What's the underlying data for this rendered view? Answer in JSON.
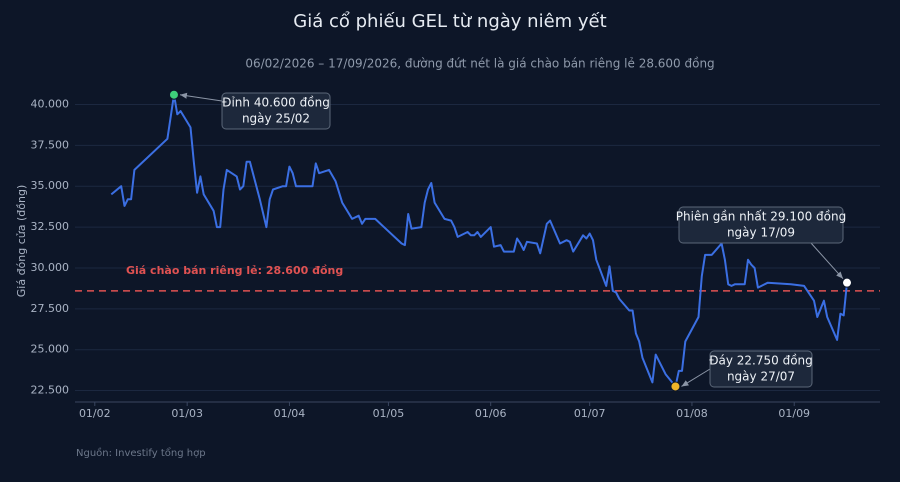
{
  "chart_data": {
    "type": "line",
    "title": "Giá cổ phiếu GEL từ ngày niêm yết",
    "subtitle": "06/02/2026 – 17/09/2026, đường đứt nét là giá chào bán riêng lẻ 28.600 đồng",
    "y_label": "Giá đóng cửa (đồng)",
    "source": "Nguồn: Investify tổng hợp",
    "color": "#3b6fe3",
    "grid": true,
    "x": [
      "06/02",
      "09/02",
      "10/02",
      "11/02",
      "12/02",
      "13/02",
      "23/02",
      "25/02",
      "26/02",
      "27/02",
      "02/03",
      "03/03",
      "04/03",
      "05/03",
      "06/03",
      "09/03",
      "10/03",
      "11/03",
      "12/03",
      "13/03",
      "16/03",
      "17/03",
      "18/03",
      "19/03",
      "20/03",
      "23/03",
      "25/03",
      "26/03",
      "27/03",
      "30/03",
      "31/03",
      "01/04",
      "02/04",
      "03/04",
      "06/04",
      "07/04",
      "08/04",
      "09/04",
      "10/04",
      "13/04",
      "15/04",
      "17/04",
      "20/04",
      "22/04",
      "23/04",
      "24/04",
      "27/04",
      "05/05",
      "06/05",
      "07/05",
      "08/05",
      "11/05",
      "12/05",
      "13/05",
      "14/05",
      "15/05",
      "18/05",
      "20/05",
      "21/05",
      "22/05",
      "25/05",
      "26/05",
      "27/05",
      "28/05",
      "29/05",
      "01/06",
      "02/06",
      "04/06",
      "05/06",
      "08/06",
      "09/06",
      "10/06",
      "11/06",
      "12/06",
      "15/06",
      "16/06",
      "18/06",
      "19/06",
      "22/06",
      "24/06",
      "25/06",
      "26/06",
      "29/06",
      "30/06",
      "01/07",
      "02/07",
      "03/07",
      "06/07",
      "07/07",
      "08/07",
      "09/07",
      "10/07",
      "13/07",
      "14/07",
      "15/07",
      "16/07",
      "17/07",
      "20/07",
      "21/07",
      "24/07",
      "27/07",
      "28/07",
      "29/07",
      "30/07",
      "03/08",
      "04/08",
      "05/08",
      "06/08",
      "07/08",
      "10/08",
      "11/08",
      "12/08",
      "13/08",
      "14/08",
      "17/08",
      "18/08",
      "19/08",
      "20/08",
      "21/08",
      "24/08",
      "31/08",
      "04/09",
      "07/09",
      "08/09",
      "10/09",
      "11/09",
      "14/09",
      "15/09",
      "16/09",
      "17/09"
    ],
    "values": [
      34500,
      35000,
      33800,
      34200,
      34200,
      36000,
      37900,
      40600,
      39400,
      39600,
      38600,
      36500,
      34600,
      35600,
      34500,
      33500,
      32500,
      32500,
      34800,
      36000,
      35600,
      34800,
      35000,
      36500,
      36500,
      34200,
      32500,
      34200,
      34800,
      35000,
      35000,
      36200,
      35800,
      35000,
      35000,
      35000,
      35000,
      36400,
      35800,
      36000,
      35300,
      34000,
      33000,
      33200,
      32700,
      33000,
      33000,
      31500,
      31400,
      33300,
      32400,
      32500,
      34000,
      34800,
      35200,
      34000,
      33000,
      32900,
      32500,
      31900,
      32200,
      32000,
      32000,
      32200,
      31900,
      32500,
      31300,
      31400,
      31000,
      31000,
      31800,
      31500,
      31100,
      31600,
      31500,
      30900,
      32700,
      32900,
      31500,
      31700,
      31600,
      31000,
      32000,
      31800,
      32100,
      31700,
      30500,
      28900,
      30100,
      28600,
      28500,
      28100,
      27400,
      27400,
      26000,
      25500,
      24500,
      23000,
      24700,
      23500,
      22750,
      23700,
      23700,
      25500,
      27000,
      29500,
      30800,
      30800,
      30800,
      31500,
      30500,
      29000,
      28900,
      29000,
      29000,
      30500,
      30200,
      30000,
      28800,
      29100,
      29000,
      28900,
      28000,
      27000,
      28000,
      27000,
      25600,
      27200,
      27100,
      29100
    ],
    "xlim": [
      "26/01",
      "27/09"
    ],
    "xticks": [
      "01/02",
      "01/03",
      "01/04",
      "01/05",
      "01/06",
      "01/07",
      "01/08",
      "01/09"
    ],
    "ylim": [
      21800,
      41500
    ],
    "yticks": [
      {
        "value": 22500,
        "label": "22.500"
      },
      {
        "value": 25000,
        "label": "25.000"
      },
      {
        "value": 27500,
        "label": "27.500"
      },
      {
        "value": 30000,
        "label": "30.000"
      },
      {
        "value": 32500,
        "label": "32.500"
      },
      {
        "value": 35000,
        "label": "35.000"
      },
      {
        "value": 37500,
        "label": "37.500"
      },
      {
        "value": 40000,
        "label": "40.000"
      }
    ],
    "reference_line": {
      "value": 28600,
      "label": "Giá chào bán riêng lẻ: 28.600 đồng",
      "color": "#e05252"
    },
    "annotations": [
      {
        "x": "25/02",
        "y": 40600,
        "color": "#3ecf7a",
        "text": [
          "Đỉnh 40.600 đồng",
          "ngày 25/02"
        ]
      },
      {
        "x": "27/07",
        "y": 22750,
        "color": "#f0b429",
        "text": [
          "Đáy 22.750 đồng",
          "ngày 27/07"
        ]
      },
      {
        "x": "17/09",
        "y": 29100,
        "color": "#ffffff",
        "text": [
          "Phiên gần nhất 29.100 đồng",
          "ngày 17/09"
        ]
      }
    ]
  }
}
